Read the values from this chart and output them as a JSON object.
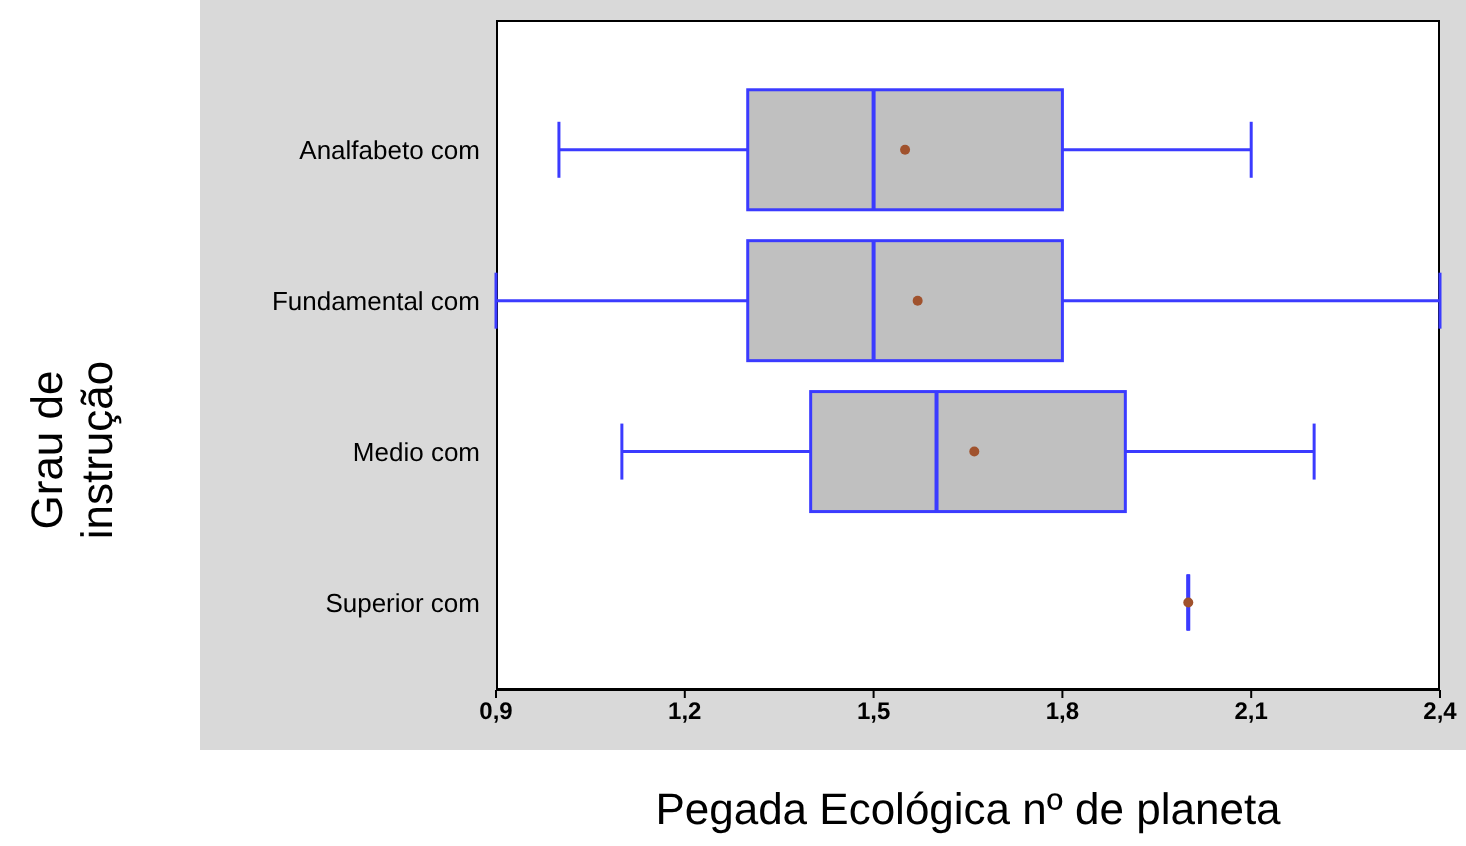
{
  "chart_data": {
    "type": "box",
    "xlabel": "Pegada Ecológica nº de planeta",
    "ylabel": "Grau de\ninstrução",
    "orientation": "horizontal",
    "categories": [
      "Analfabeto com",
      "Fundamental com",
      "Medio com",
      "Superior com"
    ],
    "boxes": [
      {
        "low": 1.0,
        "q1": 1.3,
        "median": 1.5,
        "q3": 1.8,
        "high": 2.1,
        "mean": 1.55
      },
      {
        "low": 0.9,
        "q1": 1.3,
        "median": 1.5,
        "q3": 1.8,
        "high": 2.4,
        "mean": 1.57
      },
      {
        "low": 1.1,
        "q1": 1.4,
        "median": 1.6,
        "q3": 1.9,
        "high": 2.2,
        "mean": 1.66
      },
      {
        "low": 2.0,
        "q1": 2.0,
        "median": 2.0,
        "q3": 2.0,
        "high": 2.0,
        "mean": 2.0
      }
    ],
    "color": "#3b3bff",
    "xlim": [
      0.9,
      2.4
    ],
    "xticks": [
      {
        "value": 0.9,
        "label": "0,9"
      },
      {
        "value": 1.2,
        "label": "1,2"
      },
      {
        "value": 1.5,
        "label": "1,5"
      },
      {
        "value": 1.8,
        "label": "1,8"
      },
      {
        "value": 2.1,
        "label": "2,1"
      },
      {
        "value": 2.4,
        "label": "2,4"
      }
    ],
    "data_labels": false
  }
}
